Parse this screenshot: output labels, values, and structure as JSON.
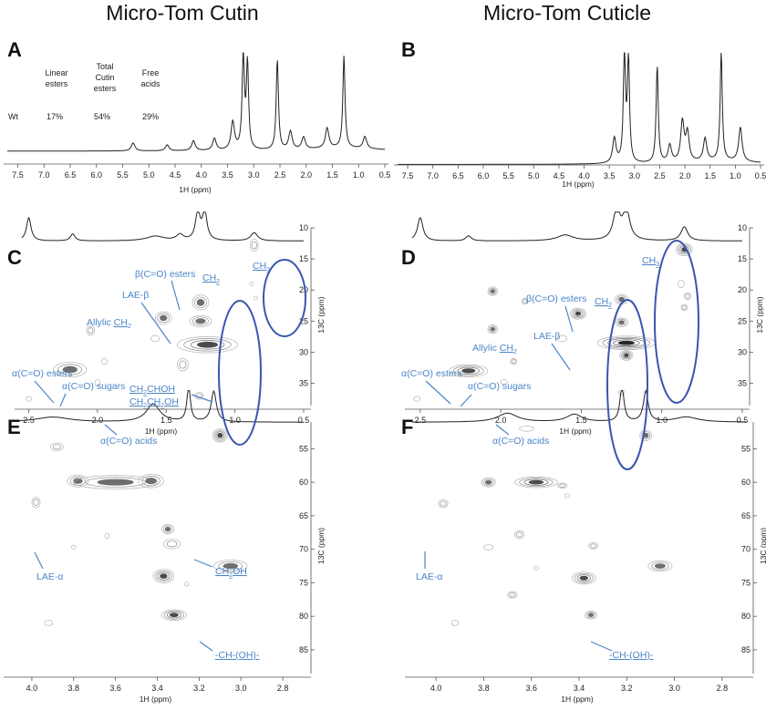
{
  "titles": {
    "left": "Micro-Tom Cutin",
    "right": "Micro-Tom Cuticle"
  },
  "table": {
    "headers": [
      [
        "Linear",
        "esters"
      ],
      [
        "Total",
        "Cutin",
        "esters"
      ],
      [
        "Free",
        "acids"
      ]
    ],
    "row_label": "Wt",
    "values": [
      "17%",
      "54%",
      "29%"
    ]
  },
  "chart_data": [
    {
      "panel": "A",
      "type": "line",
      "xlabel": "1H (ppm)",
      "xlim": [
        7.7,
        0.5
      ],
      "x_ticks": [
        "7.5",
        "7.0",
        "6.5",
        "6.0",
        "5.5",
        "5.0",
        "4.5",
        "4.0",
        "3.5",
        "3.0",
        "2.5",
        "2.0",
        "1.5",
        "1.0",
        "0.5"
      ],
      "peaks": [
        {
          "x": 5.3,
          "y": 0.08
        },
        {
          "x": 4.65,
          "y": 0.06
        },
        {
          "x": 4.15,
          "y": 0.1
        },
        {
          "x": 3.75,
          "y": 0.12
        },
        {
          "x": 3.4,
          "y": 0.28
        },
        {
          "x": 3.2,
          "y": 0.98
        },
        {
          "x": 3.12,
          "y": 0.85
        },
        {
          "x": 2.55,
          "y": 0.9
        },
        {
          "x": 2.3,
          "y": 0.18
        },
        {
          "x": 2.05,
          "y": 0.12
        },
        {
          "x": 1.6,
          "y": 0.2
        },
        {
          "x": 1.28,
          "y": 0.92
        },
        {
          "x": 0.88,
          "y": 0.12
        }
      ]
    },
    {
      "panel": "B",
      "type": "line",
      "xlabel": "1H (ppm)",
      "xlim": [
        7.7,
        0.5
      ],
      "x_ticks": [
        "7.5",
        "7.0",
        "6.5",
        "6.0",
        "5.5",
        "5.0",
        "4.5",
        "4.0",
        "3.5",
        "3.0",
        "2.5",
        "2.0",
        "1.5",
        "1.0",
        "0.5"
      ],
      "peaks": [
        {
          "x": 3.4,
          "y": 0.22
        },
        {
          "x": 3.2,
          "y": 0.98
        },
        {
          "x": 3.12,
          "y": 0.9
        },
        {
          "x": 2.55,
          "y": 0.85
        },
        {
          "x": 2.3,
          "y": 0.15
        },
        {
          "x": 2.05,
          "y": 0.35
        },
        {
          "x": 1.95,
          "y": 0.25
        },
        {
          "x": 1.6,
          "y": 0.2
        },
        {
          "x": 1.28,
          "y": 0.95
        },
        {
          "x": 0.9,
          "y": 0.3
        }
      ]
    },
    {
      "panel": "C",
      "type": "heatmap",
      "xlabel": "1H (ppm)",
      "ylabel": "13C (ppm)",
      "xlim": [
        2.55,
        0.5
      ],
      "ylim": [
        10,
        38
      ],
      "x_ticks": [
        "2.5",
        "2.0",
        "1.5",
        "1.0",
        "0.5"
      ],
      "y_ticks": [
        "10",
        "15",
        "20",
        "25",
        "30",
        "35"
      ],
      "peaks": [
        {
          "x": 2.5,
          "y": 37.5,
          "rx": 0.02,
          "ry": 0.4,
          "level": 1
        },
        {
          "x": 2.2,
          "y": 32.8,
          "rx": 0.12,
          "ry": 1.2,
          "level": 3
        },
        {
          "x": 2.05,
          "y": 26.5,
          "rx": 0.03,
          "ry": 0.8,
          "level": 2
        },
        {
          "x": 1.95,
          "y": 31.5,
          "rx": 0.02,
          "ry": 0.5,
          "level": 1
        },
        {
          "x": 2.0,
          "y": 34.9,
          "rx": 0.02,
          "ry": 0.5,
          "level": 1
        },
        {
          "x": 1.58,
          "y": 27.8,
          "rx": 0.03,
          "ry": 0.5,
          "level": 1
        },
        {
          "x": 1.52,
          "y": 24.5,
          "rx": 0.06,
          "ry": 1.0,
          "level": 3
        },
        {
          "x": 1.25,
          "y": 22.0,
          "rx": 0.06,
          "ry": 1.2,
          "level": 3
        },
        {
          "x": 1.25,
          "y": 25.0,
          "rx": 0.08,
          "ry": 0.9,
          "level": 3
        },
        {
          "x": 1.2,
          "y": 28.8,
          "rx": 0.22,
          "ry": 1.3,
          "level": 4
        },
        {
          "x": 1.38,
          "y": 32.0,
          "rx": 0.04,
          "ry": 1.0,
          "level": 2
        },
        {
          "x": 1.26,
          "y": 37.0,
          "rx": 0.03,
          "ry": 0.6,
          "level": 2
        },
        {
          "x": 0.86,
          "y": 12.8,
          "rx": 0.03,
          "ry": 1.0,
          "level": 2
        },
        {
          "x": 0.88,
          "y": 19.0,
          "rx": 0.01,
          "ry": 0.3,
          "level": 1
        },
        {
          "x": 0.85,
          "y": 21.3,
          "rx": 0.01,
          "ry": 0.3,
          "level": 1
        }
      ],
      "annotations": [
        "CH3",
        "β(C=O) esters",
        "CH2",
        "LAE-β",
        "Allylic CH2",
        "α(C=O) esters",
        "α(C=O) sugars",
        "CH2CHOH",
        "CH2CH2OH",
        "α(C=O) acids"
      ]
    },
    {
      "panel": "D",
      "type": "heatmap",
      "xlabel": "1H (ppm)",
      "ylabel": "13C (ppm)",
      "xlim": [
        2.55,
        0.5
      ],
      "ylim": [
        10,
        38
      ],
      "x_ticks": [
        "2.5",
        "2.0",
        "1.5",
        "1.0",
        "0.5"
      ],
      "y_ticks": [
        "10",
        "15",
        "20",
        "25",
        "30",
        "35"
      ],
      "peaks": [
        {
          "x": 2.52,
          "y": 37.5,
          "rx": 0.02,
          "ry": 0.4,
          "level": 1
        },
        {
          "x": 2.2,
          "y": 33.0,
          "rx": 0.12,
          "ry": 1.0,
          "level": 4
        },
        {
          "x": 2.05,
          "y": 20.2,
          "rx": 0.03,
          "ry": 0.7,
          "level": 3
        },
        {
          "x": 2.05,
          "y": 26.3,
          "rx": 0.03,
          "ry": 0.7,
          "level": 3
        },
        {
          "x": 1.92,
          "y": 31.5,
          "rx": 0.02,
          "ry": 0.5,
          "level": 2
        },
        {
          "x": 1.98,
          "y": 34.8,
          "rx": 0.02,
          "ry": 0.4,
          "level": 1
        },
        {
          "x": 1.85,
          "y": 21.8,
          "rx": 0.02,
          "ry": 0.5,
          "level": 2
        },
        {
          "x": 1.52,
          "y": 23.8,
          "rx": 0.05,
          "ry": 0.9,
          "level": 4
        },
        {
          "x": 1.62,
          "y": 27.8,
          "rx": 0.03,
          "ry": 0.5,
          "level": 1
        },
        {
          "x": 1.25,
          "y": 21.5,
          "rx": 0.04,
          "ry": 0.8,
          "level": 3
        },
        {
          "x": 1.25,
          "y": 25.2,
          "rx": 0.04,
          "ry": 0.7,
          "level": 3
        },
        {
          "x": 1.22,
          "y": 28.5,
          "rx": 0.18,
          "ry": 1.1,
          "level": 5
        },
        {
          "x": 1.22,
          "y": 30.5,
          "rx": 0.04,
          "ry": 0.8,
          "level": 4
        },
        {
          "x": 1.25,
          "y": 36.5,
          "rx": 0.02,
          "ry": 0.4,
          "level": 1
        },
        {
          "x": 0.86,
          "y": 13.5,
          "rx": 0.05,
          "ry": 1.0,
          "level": 4
        },
        {
          "x": 0.88,
          "y": 19.0,
          "rx": 0.02,
          "ry": 0.6,
          "level": 1
        },
        {
          "x": 0.84,
          "y": 21.0,
          "rx": 0.02,
          "ry": 0.6,
          "level": 2
        },
        {
          "x": 0.86,
          "y": 22.8,
          "rx": 0.02,
          "ry": 0.5,
          "level": 2
        }
      ],
      "annotations": [
        "CH3",
        "β(C=O) esters",
        "CH2",
        "LAE-β",
        "Allylic CH2",
        "α(C=O) esters",
        "α(C=O) sugars",
        "α(C=O) acids"
      ]
    },
    {
      "panel": "E",
      "type": "heatmap",
      "xlabel": "1H (ppm)",
      "ylabel": "13C (ppm)",
      "xlim": [
        4.1,
        2.7
      ],
      "ylim": [
        51,
        88
      ],
      "x_ticks": [
        "4.0",
        "3.8",
        "3.6",
        "3.4",
        "3.2",
        "3.0",
        "2.8"
      ],
      "y_ticks": [
        "55",
        "60",
        "65",
        "70",
        "75",
        "80",
        "85"
      ],
      "peaks": [
        {
          "x": 3.88,
          "y": 54.7,
          "rx": 0.03,
          "ry": 0.6,
          "level": 2
        },
        {
          "x": 3.98,
          "y": 63.0,
          "rx": 0.02,
          "ry": 0.8,
          "level": 2
        },
        {
          "x": 3.78,
          "y": 59.8,
          "rx": 0.05,
          "ry": 0.9,
          "level": 3
        },
        {
          "x": 3.6,
          "y": 60.0,
          "rx": 0.2,
          "ry": 1.0,
          "level": 3
        },
        {
          "x": 3.43,
          "y": 59.8,
          "rx": 0.06,
          "ry": 1.0,
          "level": 3
        },
        {
          "x": 3.1,
          "y": 53.0,
          "rx": 0.035,
          "ry": 1.0,
          "level": 4
        },
        {
          "x": 3.35,
          "y": 67.0,
          "rx": 0.03,
          "ry": 0.7,
          "level": 3
        },
        {
          "x": 3.33,
          "y": 69.2,
          "rx": 0.04,
          "ry": 0.7,
          "level": 2
        },
        {
          "x": 3.05,
          "y": 72.5,
          "rx": 0.08,
          "ry": 0.9,
          "level": 3
        },
        {
          "x": 3.37,
          "y": 74.0,
          "rx": 0.05,
          "ry": 1.0,
          "level": 4
        },
        {
          "x": 3.32,
          "y": 79.8,
          "rx": 0.06,
          "ry": 0.8,
          "level": 4
        },
        {
          "x": 3.64,
          "y": 68.0,
          "rx": 0.01,
          "ry": 0.4,
          "level": 1
        },
        {
          "x": 3.8,
          "y": 69.7,
          "rx": 0.01,
          "ry": 0.3,
          "level": 1
        },
        {
          "x": 3.26,
          "y": 75.2,
          "rx": 0.01,
          "ry": 0.3,
          "level": 1
        },
        {
          "x": 3.92,
          "y": 81.0,
          "rx": 0.02,
          "ry": 0.4,
          "level": 1
        }
      ],
      "annotations": [
        "LAE-α",
        "CH2OH",
        "-CH-(OH)-"
      ]
    },
    {
      "panel": "F",
      "type": "heatmap",
      "xlabel": "1H (ppm)",
      "ylabel": "13C (ppm)",
      "xlim": [
        4.1,
        2.7
      ],
      "ylim": [
        51,
        88
      ],
      "x_ticks": [
        "4.0",
        "3.8",
        "3.6",
        "3.4",
        "3.2",
        "3.0",
        "2.8"
      ],
      "y_ticks": [
        "55",
        "60",
        "65",
        "70",
        "75",
        "80",
        "85"
      ],
      "peaks": [
        {
          "x": 3.62,
          "y": 52.0,
          "rx": 0.03,
          "ry": 0.4,
          "level": 1
        },
        {
          "x": 3.12,
          "y": 53.0,
          "rx": 0.025,
          "ry": 0.8,
          "level": 3
        },
        {
          "x": 3.97,
          "y": 63.2,
          "rx": 0.02,
          "ry": 0.6,
          "level": 2
        },
        {
          "x": 3.78,
          "y": 60.0,
          "rx": 0.03,
          "ry": 0.7,
          "level": 3
        },
        {
          "x": 3.58,
          "y": 60.0,
          "rx": 0.09,
          "ry": 0.8,
          "level": 4
        },
        {
          "x": 3.47,
          "y": 60.5,
          "rx": 0.02,
          "ry": 0.4,
          "level": 2
        },
        {
          "x": 3.45,
          "y": 62.0,
          "rx": 0.01,
          "ry": 0.3,
          "level": 1
        },
        {
          "x": 3.65,
          "y": 67.8,
          "rx": 0.02,
          "ry": 0.6,
          "level": 2
        },
        {
          "x": 3.78,
          "y": 69.7,
          "rx": 0.02,
          "ry": 0.4,
          "level": 1
        },
        {
          "x": 3.34,
          "y": 69.5,
          "rx": 0.02,
          "ry": 0.5,
          "level": 2
        },
        {
          "x": 3.06,
          "y": 72.5,
          "rx": 0.05,
          "ry": 0.8,
          "level": 3
        },
        {
          "x": 3.38,
          "y": 74.3,
          "rx": 0.05,
          "ry": 0.9,
          "level": 4
        },
        {
          "x": 3.35,
          "y": 79.8,
          "rx": 0.025,
          "ry": 0.6,
          "level": 3
        },
        {
          "x": 3.58,
          "y": 72.8,
          "rx": 0.01,
          "ry": 0.3,
          "level": 1
        },
        {
          "x": 3.68,
          "y": 76.8,
          "rx": 0.02,
          "ry": 0.5,
          "level": 2
        },
        {
          "x": 3.92,
          "y": 81.0,
          "rx": 0.015,
          "ry": 0.4,
          "level": 1
        }
      ],
      "annotations": [
        "LAE-α",
        "-CH-(OH)-"
      ]
    }
  ],
  "colors": {
    "annotation": "#4a86c8",
    "ellipse": "#3a55b0",
    "ink": "#222222"
  }
}
